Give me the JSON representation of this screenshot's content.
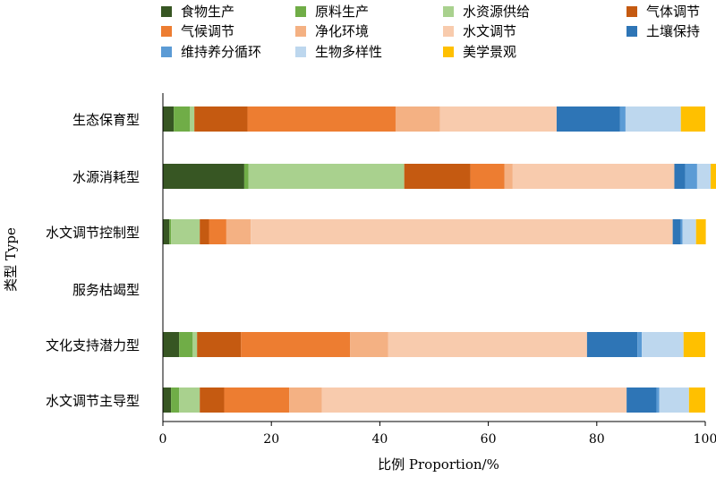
{
  "chart_data": {
    "type": "bar",
    "orientation": "horizontal",
    "stacked": true,
    "xlabel": "比例 Proportion/%",
    "ylabel": "类型 Type",
    "xlim": [
      0,
      100
    ],
    "xticks": [
      0,
      20,
      40,
      60,
      80,
      100
    ],
    "grid": false,
    "legend_position": "top",
    "categories": [
      "生态保育型",
      "水源消耗型",
      "水文调节控制型",
      "服务枯竭型",
      "文化支持潜力型",
      "水文调节主导型"
    ],
    "series": [
      {
        "name": "食物生产",
        "color": "#375623",
        "values": [
          2.0,
          15.0,
          1.2,
          0,
          3.0,
          1.5
        ]
      },
      {
        "name": "原料生产",
        "color": "#70ad47",
        "values": [
          3.0,
          0.8,
          0.3,
          0,
          2.5,
          1.5
        ]
      },
      {
        "name": "水资源供给",
        "color": "#a9d18e",
        "values": [
          0.8,
          28.7,
          5.3,
          0,
          0.8,
          3.8
        ]
      },
      {
        "name": "气体调节",
        "color": "#c55a11",
        "values": [
          9.8,
          12.2,
          1.7,
          0,
          8.1,
          4.5
        ]
      },
      {
        "name": "气候调节",
        "color": "#ed7d31",
        "values": [
          27.3,
          6.3,
          3.2,
          0,
          20.1,
          12.0
        ]
      },
      {
        "name": "净化环境",
        "color": "#f4b183",
        "values": [
          8.2,
          1.5,
          4.5,
          0,
          7.0,
          6.0
        ]
      },
      {
        "name": "水文调节",
        "color": "#f8cbad",
        "values": [
          21.5,
          29.8,
          77.8,
          0,
          36.7,
          56.2
        ]
      },
      {
        "name": "土壤保持",
        "color": "#2e75b6",
        "values": [
          11.7,
          2.0,
          1.5,
          0,
          9.3,
          5.5
        ]
      },
      {
        "name": "维持养分循环",
        "color": "#5b9bd5",
        "values": [
          1.0,
          2.2,
          0.3,
          0,
          0.8,
          0.5
        ]
      },
      {
        "name": "生物多样性",
        "color": "#bdd7ee",
        "values": [
          10.2,
          2.5,
          2.5,
          0,
          7.7,
          5.5
        ]
      },
      {
        "name": "美学景观",
        "color": "#ffc000",
        "values": [
          4.5,
          1.0,
          1.8,
          0,
          4.0,
          3.0
        ]
      }
    ]
  }
}
